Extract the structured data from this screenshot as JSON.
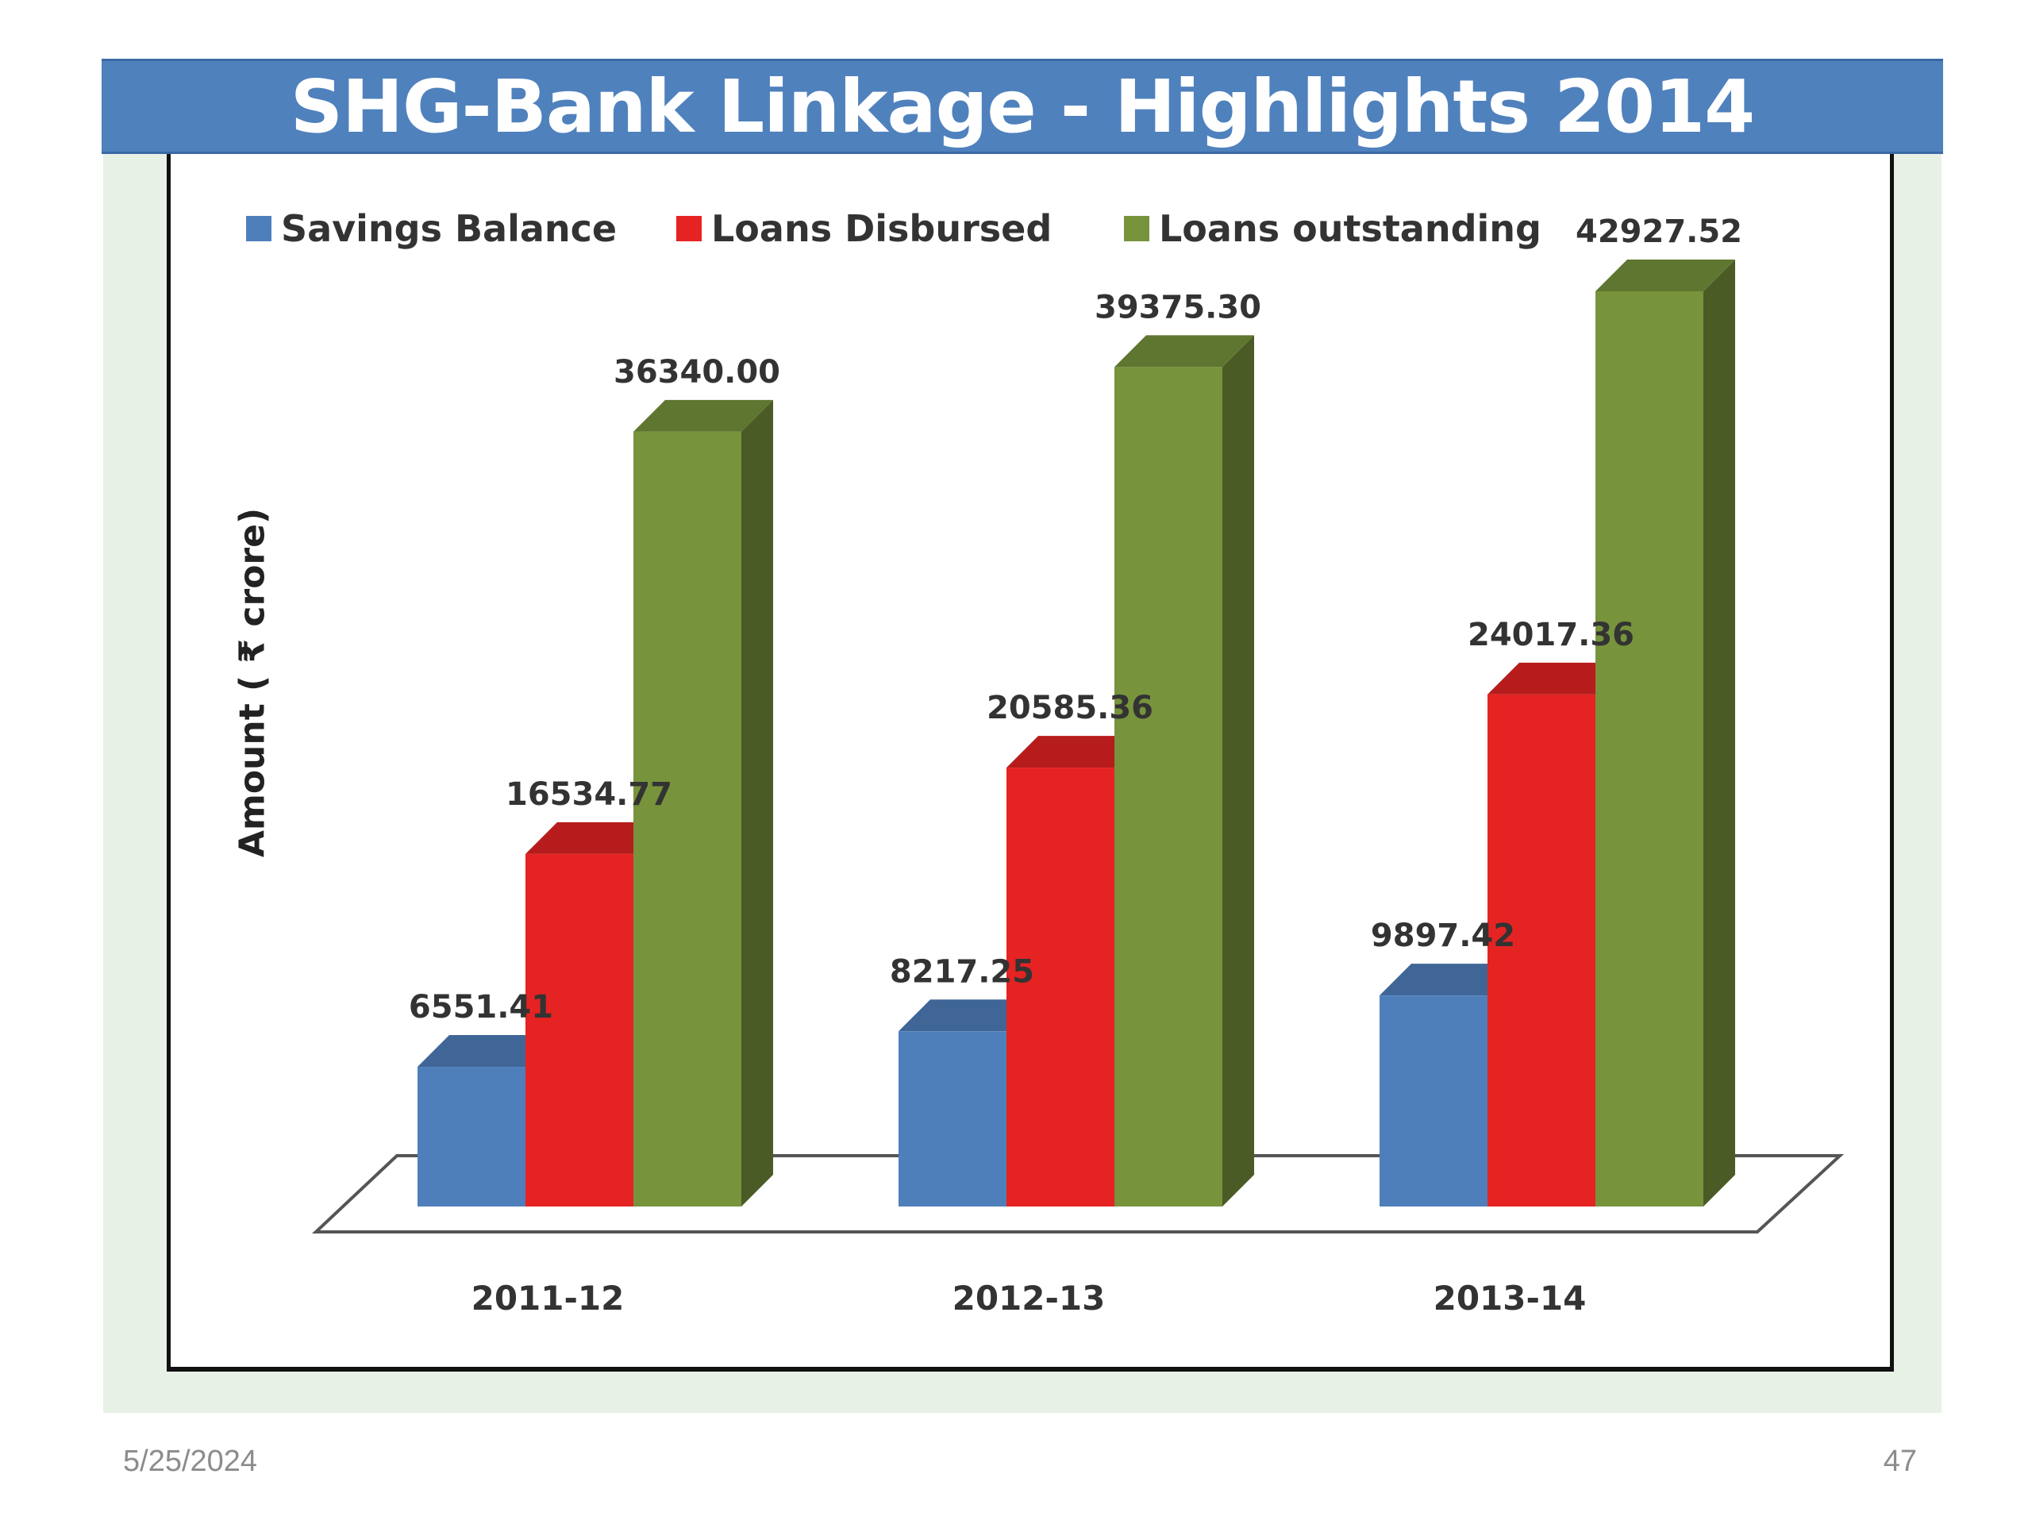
{
  "slide": {
    "title": "SHG-Bank Linkage - Highlights 2014",
    "date": "5/25/2024",
    "page_number": "47"
  },
  "chart_data": {
    "type": "bar",
    "title": "",
    "xlabel": "",
    "ylabel": "Amount ( ₹ crore)",
    "ylim": [
      0,
      45000
    ],
    "grid": false,
    "legend_position": "top",
    "three_d": true,
    "categories": [
      "2011-12",
      "2012-13",
      "2013-14"
    ],
    "series": [
      {
        "name": "Savings Balance",
        "color": "#4f7fbb",
        "values": [
          6551.41,
          8217.25,
          9897.42
        ],
        "labels": [
          "6551.41",
          "8217.25",
          "9897.42"
        ]
      },
      {
        "name": "Loans Disbursed",
        "color": "#e52323",
        "values": [
          16534.77,
          20585.36,
          24017.36
        ],
        "labels": [
          "16534.77",
          "20585.36",
          "24017.36"
        ]
      },
      {
        "name": "Loans outstanding",
        "color": "#77933c",
        "values": [
          36340.0,
          39375.3,
          42927.52
        ],
        "labels": [
          "36340.00",
          "39375.30",
          "42927.52"
        ]
      }
    ]
  }
}
